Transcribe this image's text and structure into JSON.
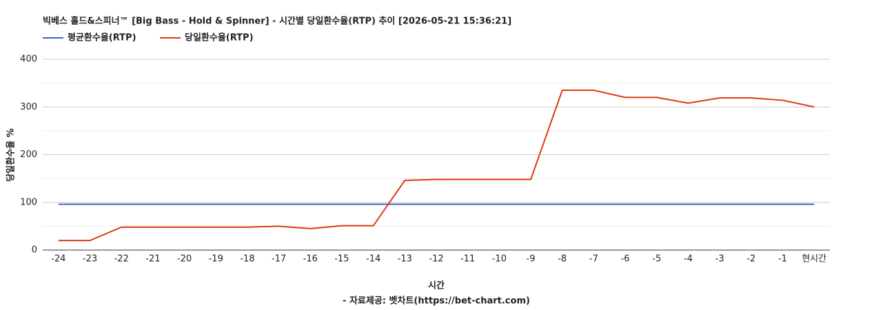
{
  "chart_data": {
    "type": "line",
    "title": "빅베스 홀드&스피너™ [Big Bass - Hold & Spinner] - 시간별 당일환수율(RTP) 추이 [2026-05-21 15:36:21]",
    "x_label": "시간",
    "y_label": "당일환수율 %",
    "source": "- 자료제공: 벳차트(https://bet-chart.com)",
    "categories": [
      "-24",
      "-23",
      "-22",
      "-21",
      "-20",
      "-19",
      "-18",
      "-17",
      "-16",
      "-15",
      "-14",
      "-13",
      "-12",
      "-11",
      "-10",
      "-9",
      "-8",
      "-7",
      "-6",
      "-5",
      "-4",
      "-3",
      "-2",
      "-1",
      "현시간"
    ],
    "series": [
      {
        "name": "평균환수율(RTP)",
        "color": "#3366cc",
        "values": [
          96,
          96,
          96,
          96,
          96,
          96,
          96,
          96,
          96,
          96,
          96,
          96,
          96,
          96,
          96,
          96,
          96,
          96,
          96,
          96,
          96,
          96,
          96,
          96,
          96
        ]
      },
      {
        "name": "당일환수율(RTP)",
        "color": "#dc3912",
        "values": [
          20,
          20,
          48,
          48,
          48,
          48,
          48,
          50,
          45,
          51,
          51,
          146,
          148,
          148,
          148,
          148,
          335,
          335,
          320,
          320,
          308,
          319,
          319,
          314,
          300
        ]
      }
    ],
    "ylim": [
      0,
      400
    ],
    "yticks": [
      0,
      100,
      200,
      300,
      400
    ],
    "minor_yticks": [
      50,
      150,
      250,
      350
    ],
    "grid": true,
    "legend": "top-left"
  }
}
